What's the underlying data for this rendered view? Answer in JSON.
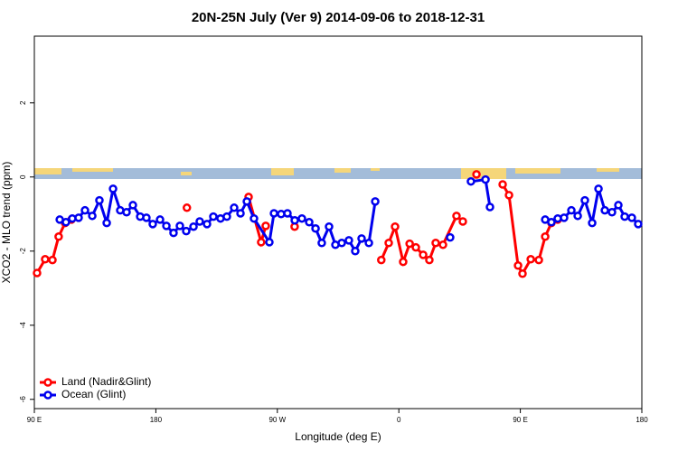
{
  "chart_data": {
    "type": "line",
    "title": "20N-25N July (Ver 9)   2014-09-06 to 2018-12-31",
    "x_label": "Longitude (deg E)",
    "y_label": "XCO2 - MLO trend (ppm)",
    "xlim": [
      90,
      540
    ],
    "xticks": [
      {
        "value": 90,
        "label": "90 E"
      },
      {
        "value": 180,
        "label": "180"
      },
      {
        "value": 270,
        "label": "90 W"
      },
      {
        "value": 360,
        "label": "0"
      },
      {
        "value": 450,
        "label": "90 E"
      },
      {
        "value": 540,
        "label": "180"
      }
    ],
    "ylim": [
      -6.25,
      3.8
    ],
    "yticks": [
      -6,
      -4,
      -2,
      0,
      2
    ],
    "legend": "bottom-left",
    "series": [
      {
        "name": "Land (Nadir&Glint)",
        "color": "#ff0000",
        "x": [
          92,
          98,
          103.4,
          108,
          112.8,
          117.5,
          null,
          203,
          null,
          248.7,
          258,
          261.4,
          null,
          282.8,
          null,
          347,
          352.5,
          357.2,
          363.2,
          368,
          372.6,
          378,
          382.6,
          387.3,
          392.7,
          402.7,
          407.4,
          null,
          417.5,
          null,
          436.9,
          441.6,
          448.3,
          451.6,
          457.7,
          463.7,
          468.4,
          473,
          477.7
        ],
        "values": [
          -2.59,
          -2.22,
          -2.24,
          -1.61,
          -1.24,
          -1.15,
          null,
          -0.83,
          null,
          -0.54,
          -1.76,
          -1.32,
          null,
          -1.34,
          null,
          -2.24,
          -1.78,
          -1.34,
          -2.29,
          -1.8,
          -1.9,
          -2.1,
          -2.24,
          -1.78,
          -1.83,
          -1.05,
          -1.2,
          null,
          0.07,
          null,
          -0.2,
          -0.49,
          -2.39,
          -2.61,
          -2.22,
          -2.24,
          -1.61,
          -1.24,
          -1.15
        ]
      },
      {
        "name": "Ocean (Glint)",
        "color": "#0000ee",
        "x": [
          108.8,
          113.4,
          118.1,
          122.8,
          127.5,
          132.9,
          138.2,
          143.6,
          148.3,
          153.6,
          158.3,
          163,
          168.4,
          173,
          177.7,
          183.1,
          187.8,
          193.1,
          197.8,
          202.5,
          207.9,
          212.5,
          217.9,
          222.6,
          227.9,
          232.6,
          238,
          242.7,
          247.4,
          252.7,
          264.1,
          267.5,
          272.8,
          277.5,
          282.9,
          288.2,
          293.6,
          298.3,
          302.9,
          308.3,
          313,
          317.7,
          323,
          327.7,
          332.4,
          337.8,
          342.5,
          null,
          398,
          null,
          413.4,
          424.2,
          427.5,
          null,
          468.4,
          473,
          477.7,
          482.4,
          487.8,
          492.5,
          497.8,
          503.2,
          507.9,
          512.6,
          517.9,
          522.6,
          527.3,
          532.6,
          537.3
        ],
        "values": [
          -1.15,
          -1.22,
          -1.12,
          -1.1,
          -0.9,
          -1.05,
          -0.63,
          -1.24,
          -0.32,
          -0.9,
          -0.95,
          -0.76,
          -1.07,
          -1.1,
          -1.27,
          -1.15,
          -1.32,
          -1.51,
          -1.32,
          -1.46,
          -1.34,
          -1.2,
          -1.27,
          -1.07,
          -1.12,
          -1.07,
          -0.83,
          -0.98,
          -0.66,
          -1.12,
          -1.76,
          -0.98,
          -1.0,
          -0.98,
          -1.17,
          -1.12,
          -1.22,
          -1.39,
          -1.78,
          -1.34,
          -1.83,
          -1.78,
          -1.71,
          -2.0,
          -1.66,
          -1.78,
          -0.66,
          null,
          -1.63,
          null,
          -0.12,
          -0.07,
          -0.81,
          null,
          -1.15,
          -1.22,
          -1.12,
          -1.1,
          -0.9,
          -1.05,
          -0.63,
          -1.24,
          -0.32,
          -0.9,
          -0.95,
          -0.76,
          -1.07,
          -1.1,
          -1.27
        ]
      }
    ]
  }
}
